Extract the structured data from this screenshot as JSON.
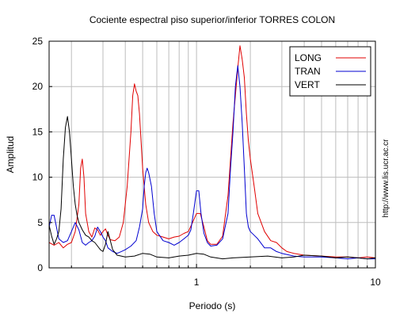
{
  "chart_data": {
    "type": "line",
    "title": "Cociente espectral piso superior/inferior  TORRES COLON",
    "xlabel": "Periodo (s)",
    "ylabel": "Amplitud",
    "xscale": "log",
    "xlim": [
      0.15,
      10
    ],
    "ylim": [
      0,
      25
    ],
    "xticks": [
      1,
      10
    ],
    "xtick_labels": [
      "1",
      "10"
    ],
    "yticks": [
      0,
      5,
      10,
      15,
      20,
      25
    ],
    "ytick_labels": [
      "0",
      "5",
      "10",
      "15",
      "20",
      "25"
    ],
    "grid": true,
    "legend_position": "top-right",
    "series": [
      {
        "name": "LONG",
        "color": "#e00000",
        "points": [
          [
            0.15,
            2.8
          ],
          [
            0.16,
            2.5
          ],
          [
            0.17,
            2.8
          ],
          [
            0.18,
            2.2
          ],
          [
            0.19,
            2.6
          ],
          [
            0.2,
            2.8
          ],
          [
            0.21,
            4.0
          ],
          [
            0.22,
            7.0
          ],
          [
            0.225,
            11.0
          ],
          [
            0.23,
            12.0
          ],
          [
            0.235,
            10.0
          ],
          [
            0.24,
            6.0
          ],
          [
            0.25,
            4.0
          ],
          [
            0.26,
            3.4
          ],
          [
            0.27,
            4.4
          ],
          [
            0.28,
            4.2
          ],
          [
            0.29,
            3.6
          ],
          [
            0.3,
            4.0
          ],
          [
            0.31,
            4.3
          ],
          [
            0.32,
            3.6
          ],
          [
            0.33,
            3.1
          ],
          [
            0.35,
            3.0
          ],
          [
            0.37,
            3.4
          ],
          [
            0.39,
            5.0
          ],
          [
            0.41,
            9.0
          ],
          [
            0.43,
            15.0
          ],
          [
            0.44,
            19.0
          ],
          [
            0.45,
            20.3
          ],
          [
            0.46,
            19.5
          ],
          [
            0.47,
            19.0
          ],
          [
            0.48,
            17.0
          ],
          [
            0.49,
            14.0
          ],
          [
            0.5,
            11.0
          ],
          [
            0.52,
            7.0
          ],
          [
            0.54,
            5.0
          ],
          [
            0.57,
            4.0
          ],
          [
            0.6,
            3.6
          ],
          [
            0.65,
            3.4
          ],
          [
            0.7,
            3.2
          ],
          [
            0.75,
            3.4
          ],
          [
            0.8,
            3.5
          ],
          [
            0.85,
            3.8
          ],
          [
            0.9,
            4.0
          ],
          [
            0.95,
            5.0
          ],
          [
            1.0,
            6.0
          ],
          [
            1.05,
            6.0
          ],
          [
            1.1,
            4.5
          ],
          [
            1.15,
            3.0
          ],
          [
            1.2,
            2.6
          ],
          [
            1.3,
            2.6
          ],
          [
            1.4,
            3.5
          ],
          [
            1.5,
            8.0
          ],
          [
            1.6,
            16.0
          ],
          [
            1.65,
            19.0
          ],
          [
            1.7,
            22.0
          ],
          [
            1.75,
            24.5
          ],
          [
            1.8,
            23.0
          ],
          [
            1.85,
            21.0
          ],
          [
            1.9,
            17.0
          ],
          [
            1.95,
            14.0
          ],
          [
            2.0,
            12.0
          ],
          [
            2.1,
            9.0
          ],
          [
            2.2,
            6.0
          ],
          [
            2.4,
            4.0
          ],
          [
            2.6,
            3.0
          ],
          [
            2.8,
            2.8
          ],
          [
            3.0,
            2.2
          ],
          [
            3.2,
            1.8
          ],
          [
            3.5,
            1.6
          ],
          [
            4.0,
            1.4
          ],
          [
            5.0,
            1.3
          ],
          [
            6.0,
            1.2
          ],
          [
            7.0,
            1.2
          ],
          [
            8.0,
            1.1
          ],
          [
            9.0,
            1.2
          ],
          [
            10.0,
            1.1
          ]
        ]
      },
      {
        "name": "TRAN",
        "color": "#0000d0",
        "points": [
          [
            0.15,
            4.5
          ],
          [
            0.155,
            5.8
          ],
          [
            0.16,
            5.8
          ],
          [
            0.17,
            3.2
          ],
          [
            0.18,
            2.8
          ],
          [
            0.19,
            3.0
          ],
          [
            0.2,
            4.0
          ],
          [
            0.21,
            5.0
          ],
          [
            0.22,
            4.2
          ],
          [
            0.23,
            2.8
          ],
          [
            0.24,
            2.5
          ],
          [
            0.25,
            2.8
          ],
          [
            0.26,
            3.0
          ],
          [
            0.27,
            3.5
          ],
          [
            0.28,
            4.5
          ],
          [
            0.29,
            4.0
          ],
          [
            0.3,
            3.4
          ],
          [
            0.31,
            3.0
          ],
          [
            0.32,
            2.2
          ],
          [
            0.34,
            1.8
          ],
          [
            0.36,
            1.6
          ],
          [
            0.38,
            1.8
          ],
          [
            0.4,
            2.0
          ],
          [
            0.43,
            2.4
          ],
          [
            0.46,
            3.0
          ],
          [
            0.48,
            4.5
          ],
          [
            0.5,
            6.5
          ],
          [
            0.51,
            9.0
          ],
          [
            0.52,
            10.5
          ],
          [
            0.53,
            11.0
          ],
          [
            0.54,
            10.5
          ],
          [
            0.56,
            9.0
          ],
          [
            0.58,
            6.0
          ],
          [
            0.6,
            4.0
          ],
          [
            0.65,
            3.0
          ],
          [
            0.7,
            2.8
          ],
          [
            0.75,
            2.5
          ],
          [
            0.8,
            2.8
          ],
          [
            0.85,
            3.2
          ],
          [
            0.9,
            3.6
          ],
          [
            0.93,
            4.2
          ],
          [
            0.96,
            6.0
          ],
          [
            1.0,
            8.5
          ],
          [
            1.03,
            8.5
          ],
          [
            1.06,
            6.0
          ],
          [
            1.1,
            3.8
          ],
          [
            1.15,
            2.8
          ],
          [
            1.2,
            2.4
          ],
          [
            1.3,
            2.5
          ],
          [
            1.4,
            3.2
          ],
          [
            1.5,
            6.0
          ],
          [
            1.55,
            11.0
          ],
          [
            1.6,
            15.0
          ],
          [
            1.65,
            20.0
          ],
          [
            1.7,
            22.3
          ],
          [
            1.75,
            20.0
          ],
          [
            1.8,
            16.0
          ],
          [
            1.85,
            11.0
          ],
          [
            1.9,
            6.0
          ],
          [
            1.95,
            4.5
          ],
          [
            2.0,
            4.0
          ],
          [
            2.1,
            3.6
          ],
          [
            2.2,
            3.2
          ],
          [
            2.4,
            2.2
          ],
          [
            2.6,
            2.2
          ],
          [
            2.8,
            1.8
          ],
          [
            3.0,
            1.6
          ],
          [
            3.5,
            1.3
          ],
          [
            4.0,
            1.2
          ],
          [
            5.0,
            1.2
          ],
          [
            6.0,
            1.1
          ],
          [
            7.0,
            1.0
          ],
          [
            8.0,
            1.1
          ],
          [
            9.0,
            1.0
          ],
          [
            10.0,
            1.0
          ]
        ]
      },
      {
        "name": "VERT",
        "color": "#000000",
        "points": [
          [
            0.15,
            4.7
          ],
          [
            0.155,
            3.5
          ],
          [
            0.16,
            2.6
          ],
          [
            0.165,
            3.2
          ],
          [
            0.17,
            4.0
          ],
          [
            0.175,
            6.5
          ],
          [
            0.18,
            12.0
          ],
          [
            0.185,
            15.5
          ],
          [
            0.19,
            16.7
          ],
          [
            0.195,
            15.0
          ],
          [
            0.2,
            12.0
          ],
          [
            0.205,
            9.0
          ],
          [
            0.21,
            7.0
          ],
          [
            0.215,
            5.8
          ],
          [
            0.22,
            5.0
          ],
          [
            0.23,
            4.2
          ],
          [
            0.24,
            3.6
          ],
          [
            0.25,
            3.4
          ],
          [
            0.26,
            3.0
          ],
          [
            0.27,
            2.8
          ],
          [
            0.28,
            2.4
          ],
          [
            0.29,
            2.0
          ],
          [
            0.3,
            1.8
          ],
          [
            0.31,
            2.6
          ],
          [
            0.32,
            4.0
          ],
          [
            0.33,
            3.0
          ],
          [
            0.34,
            2.0
          ],
          [
            0.36,
            1.4
          ],
          [
            0.4,
            1.2
          ],
          [
            0.45,
            1.3
          ],
          [
            0.5,
            1.6
          ],
          [
            0.55,
            1.5
          ],
          [
            0.6,
            1.2
          ],
          [
            0.7,
            1.1
          ],
          [
            0.8,
            1.3
          ],
          [
            0.9,
            1.4
          ],
          [
            1.0,
            1.6
          ],
          [
            1.1,
            1.5
          ],
          [
            1.2,
            1.2
          ],
          [
            1.4,
            1.0
          ],
          [
            1.6,
            1.1
          ],
          [
            2.0,
            1.2
          ],
          [
            2.5,
            1.3
          ],
          [
            3.0,
            1.1
          ],
          [
            3.5,
            1.2
          ],
          [
            4.0,
            1.4
          ],
          [
            5.0,
            1.3
          ],
          [
            6.0,
            1.1
          ],
          [
            7.0,
            1.2
          ],
          [
            8.0,
            1.1
          ],
          [
            9.0,
            1.0
          ],
          [
            10.0,
            1.1
          ]
        ]
      }
    ]
  },
  "watermark": "http://www.lis.ucr.ac.cr"
}
